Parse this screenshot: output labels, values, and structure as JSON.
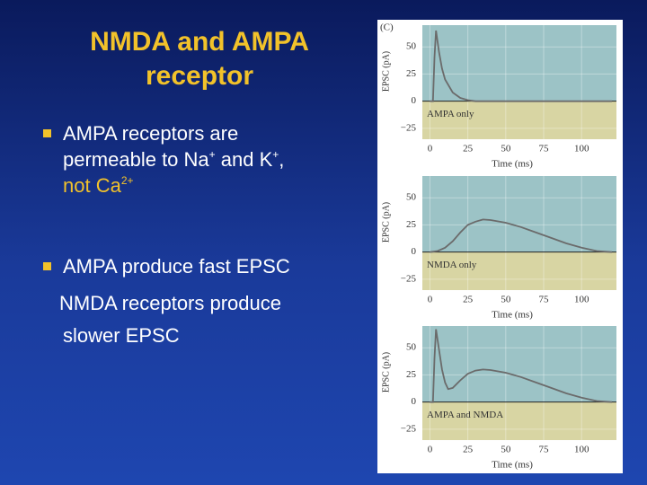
{
  "slide": {
    "title": "NMDA and AMPA receptor",
    "bullet_1": [
      "AMPA receptors are",
      "permeable to Na",
      "+",
      " and K",
      "+",
      ",",
      "not Ca",
      "2+"
    ],
    "bullet_2": "AMPA produce fast EPSC",
    "note": [
      "NMDA receptors produce",
      "slower EPSC"
    ]
  },
  "figure_label": "(C)",
  "chart_data": [
    {
      "type": "line",
      "ylabel": "EPSC (pA)",
      "xlabel": "Time (ms)",
      "annotation": "AMPA only",
      "color": "#6b6b6b",
      "x": [
        0,
        2,
        3,
        4,
        6,
        8,
        10,
        15,
        20,
        25,
        30,
        40,
        60,
        80,
        100,
        120
      ],
      "values": [
        0,
        0,
        40,
        65,
        45,
        30,
        20,
        8,
        3,
        1,
        0,
        0,
        0,
        0,
        0,
        0
      ],
      "xlim": [
        -5,
        123
      ],
      "ylim": [
        -35,
        70
      ],
      "xticks": [
        0,
        25,
        50,
        75,
        100
      ],
      "yticks": [
        50,
        25,
        0,
        {
          "value": -25,
          "label": "−25"
        }
      ],
      "grid": true,
      "area_colors": {
        "above": "#9cc3c6",
        "below": "#d8d5a3"
      }
    },
    {
      "type": "line",
      "ylabel": "EPSC (pA)",
      "xlabel": "Time (ms)",
      "annotation": "NMDA only",
      "color": "#6b6b6b",
      "x": [
        0,
        5,
        10,
        15,
        20,
        25,
        30,
        35,
        40,
        50,
        60,
        70,
        80,
        90,
        100,
        110,
        120
      ],
      "values": [
        0,
        1,
        4,
        10,
        18,
        25,
        28,
        30,
        29.5,
        27,
        23,
        18,
        13,
        8,
        4,
        1,
        0
      ],
      "xlim": [
        -5,
        123
      ],
      "ylim": [
        -35,
        70
      ],
      "xticks": [
        0,
        25,
        50,
        75,
        100
      ],
      "yticks": [
        50,
        25,
        0,
        {
          "value": -25,
          "label": "−25"
        }
      ],
      "grid": true,
      "area_colors": {
        "above": "#9cc3c6",
        "below": "#d8d5a3"
      }
    },
    {
      "type": "line",
      "ylabel": "EPSC (pA)",
      "xlabel": "Time (ms)",
      "annotation": "AMPA and NMDA",
      "color": "#6b6b6b",
      "x": [
        0,
        2,
        3,
        4,
        6,
        8,
        10,
        12,
        15,
        20,
        25,
        30,
        35,
        40,
        50,
        60,
        70,
        80,
        90,
        100,
        110,
        120
      ],
      "values": [
        0,
        0,
        40,
        67,
        48,
        30,
        18,
        12,
        13,
        20,
        26,
        29,
        30,
        29.5,
        27,
        23,
        18,
        13,
        8,
        4,
        1,
        0
      ],
      "xlim": [
        -5,
        123
      ],
      "ylim": [
        -35,
        70
      ],
      "xticks": [
        0,
        25,
        50,
        75,
        100
      ],
      "yticks": [
        50,
        25,
        0,
        {
          "value": -25,
          "label": "−25"
        }
      ],
      "grid": true,
      "area_colors": {
        "above": "#9cc3c6",
        "below": "#d8d5a3"
      }
    }
  ]
}
